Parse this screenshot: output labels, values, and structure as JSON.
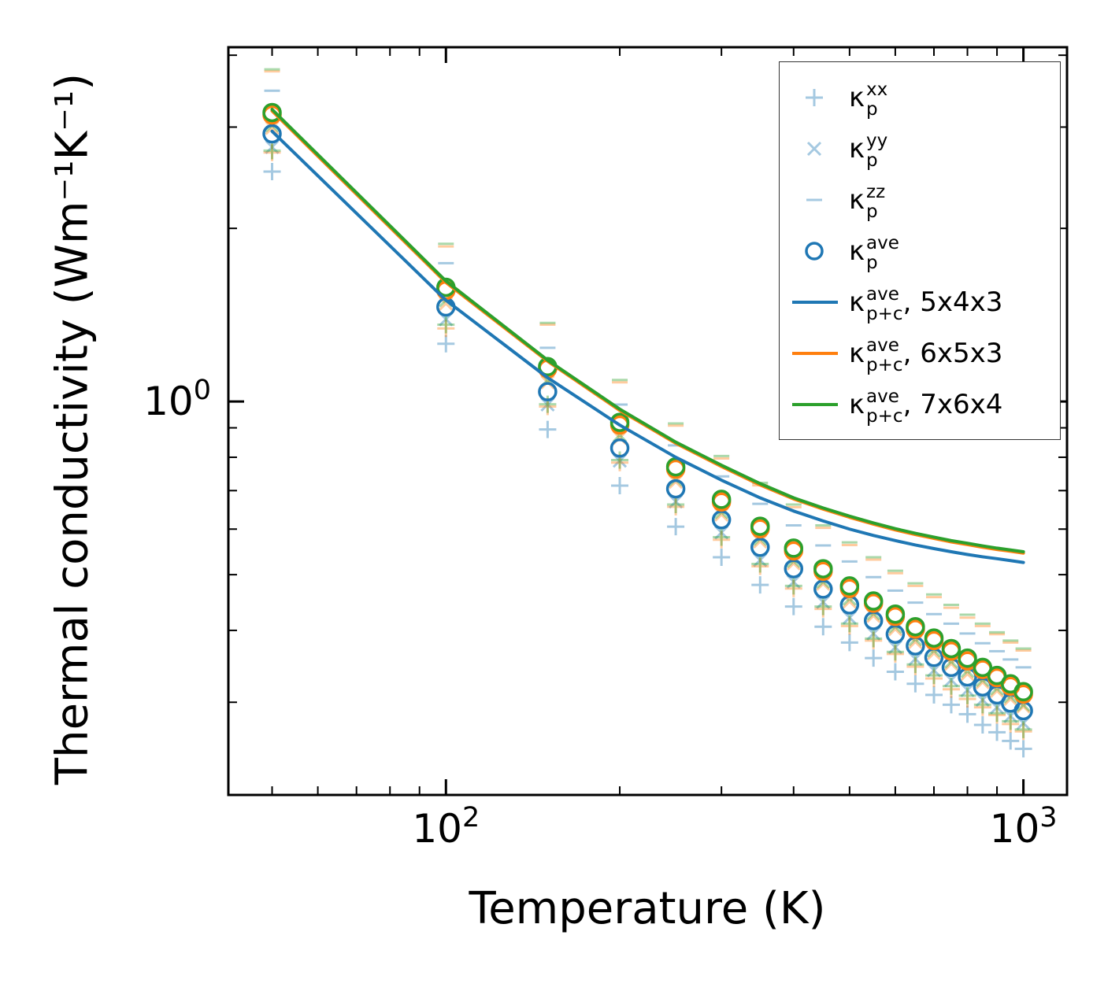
{
  "chart_data": {
    "type": "scatter+line",
    "title": "",
    "xlabel": "Temperature (K)",
    "ylabel": "Thermal conductivity (Wm⁻¹K⁻¹)",
    "xscale": "log",
    "yscale": "log",
    "xlim": [
      42,
      1190
    ],
    "ylim": [
      0.207,
      4.13
    ],
    "grid": false,
    "legend_position": "upper right",
    "axis_color": "#000000",
    "xticks": [
      {
        "v": 100,
        "base": "10",
        "exp": "2"
      },
      {
        "v": 1000,
        "base": "10",
        "exp": "3"
      }
    ],
    "yticks": [
      {
        "v": 1,
        "base": "10",
        "exp": "0"
      }
    ],
    "x": [
      50,
      100,
      150,
      200,
      250,
      300,
      350,
      400,
      450,
      500,
      550,
      600,
      650,
      700,
      750,
      800,
      850,
      900,
      950,
      1000
    ],
    "series": [
      {
        "name": "kappa-p-xx-5x4x3",
        "type": "scatter",
        "marker": "plus",
        "color": "#1f77b4",
        "alpha": 0.4,
        "values": [
          2.51,
          1.26,
          0.894,
          0.714,
          0.606,
          0.536,
          0.48,
          0.44,
          0.406,
          0.381,
          0.358,
          0.339,
          0.323,
          0.309,
          0.297,
          0.286,
          0.274,
          0.266,
          0.257,
          0.249
        ]
      },
      {
        "name": "kappa-p-yy-5x4x3",
        "type": "scatter",
        "marker": "x",
        "color": "#1f77b4",
        "alpha": 0.4,
        "values": [
          2.77,
          1.39,
          0.988,
          0.789,
          0.67,
          0.592,
          0.53,
          0.486,
          0.448,
          0.421,
          0.395,
          0.374,
          0.357,
          0.341,
          0.328,
          0.315,
          0.303,
          0.294,
          0.284,
          0.276
        ]
      },
      {
        "name": "kappa-p-zz-5x4x3",
        "type": "scatter",
        "marker": "dash",
        "color": "#1f77b4",
        "alpha": 0.4,
        "values": [
          3.47,
          1.74,
          1.24,
          0.988,
          0.839,
          0.741,
          0.664,
          0.609,
          0.562,
          0.527,
          0.495,
          0.469,
          0.447,
          0.427,
          0.411,
          0.395,
          0.38,
          0.368,
          0.356,
          0.345
        ]
      },
      {
        "name": "kappa-p-xx-6x5x3",
        "type": "scatter",
        "marker": "plus",
        "color": "#ff7f0e",
        "alpha": 0.4,
        "values": [
          2.71,
          1.34,
          0.98,
          0.783,
          0.656,
          0.575,
          0.517,
          0.473,
          0.436,
          0.407,
          0.384,
          0.364,
          0.346,
          0.33,
          0.316,
          0.304,
          0.294,
          0.285,
          0.275,
          0.267
        ]
      },
      {
        "name": "kappa-p-yy-6x5x3",
        "type": "scatter",
        "marker": "x",
        "color": "#ff7f0e",
        "alpha": 0.4,
        "values": [
          2.99,
          1.48,
          1.08,
          0.865,
          0.725,
          0.636,
          0.571,
          0.523,
          0.482,
          0.449,
          0.424,
          0.402,
          0.382,
          0.365,
          0.35,
          0.336,
          0.325,
          0.314,
          0.304,
          0.295
        ]
      },
      {
        "name": "kappa-p-zz-6x5x3",
        "type": "scatter",
        "marker": "dash",
        "color": "#ff7f0e",
        "alpha": 0.4,
        "values": [
          3.75,
          1.86,
          1.36,
          1.08,
          0.908,
          0.796,
          0.715,
          0.655,
          0.603,
          0.563,
          0.531,
          0.503,
          0.478,
          0.457,
          0.438,
          0.421,
          0.407,
          0.394,
          0.381,
          0.369
        ]
      },
      {
        "name": "kappa-p-xx-7x6x4",
        "type": "scatter",
        "marker": "plus",
        "color": "#2ca02c",
        "alpha": 0.4,
        "values": [
          2.73,
          1.36,
          0.989,
          0.791,
          0.662,
          0.581,
          0.522,
          0.478,
          0.44,
          0.411,
          0.387,
          0.367,
          0.349,
          0.334,
          0.32,
          0.308,
          0.297,
          0.287,
          0.278,
          0.269
        ]
      },
      {
        "name": "kappa-p-yy-7x6x4",
        "type": "scatter",
        "marker": "x",
        "color": "#2ca02c",
        "alpha": 0.4,
        "values": [
          3.02,
          1.5,
          1.09,
          0.874,
          0.732,
          0.642,
          0.577,
          0.528,
          0.486,
          0.454,
          0.428,
          0.406,
          0.386,
          0.369,
          0.353,
          0.34,
          0.328,
          0.317,
          0.307,
          0.297
        ]
      },
      {
        "name": "kappa-p-zz-7x6x4",
        "type": "scatter",
        "marker": "dash",
        "color": "#2ca02c",
        "alpha": 0.4,
        "values": [
          3.78,
          1.88,
          1.37,
          1.09,
          0.916,
          0.804,
          0.722,
          0.662,
          0.609,
          0.569,
          0.536,
          0.508,
          0.483,
          0.462,
          0.443,
          0.426,
          0.411,
          0.397,
          0.384,
          0.372
        ]
      },
      {
        "name": "kappa-p-ave-5x4x3",
        "type": "scatter",
        "marker": "circle",
        "color": "#1f77b4",
        "alpha": 1,
        "values": [
          2.92,
          1.46,
          1.04,
          0.83,
          0.705,
          0.623,
          0.558,
          0.512,
          0.472,
          0.443,
          0.416,
          0.394,
          0.376,
          0.359,
          0.345,
          0.332,
          0.319,
          0.309,
          0.299,
          0.29
        ]
      },
      {
        "name": "kappa-p-ave-6x5x3",
        "type": "scatter",
        "marker": "circle",
        "color": "#ff7f0e",
        "alpha": 1,
        "values": [
          3.15,
          1.56,
          1.14,
          0.91,
          0.763,
          0.669,
          0.601,
          0.55,
          0.507,
          0.473,
          0.446,
          0.423,
          0.402,
          0.384,
          0.368,
          0.354,
          0.342,
          0.331,
          0.32,
          0.31
        ]
      },
      {
        "name": "kappa-p-ave-7x6x4",
        "type": "scatter",
        "marker": "circle",
        "color": "#2ca02c",
        "alpha": 1,
        "values": [
          3.18,
          1.58,
          1.15,
          0.92,
          0.77,
          0.676,
          0.607,
          0.556,
          0.512,
          0.478,
          0.45,
          0.427,
          0.406,
          0.388,
          0.372,
          0.358,
          0.345,
          0.334,
          0.323,
          0.313
        ]
      },
      {
        "name": "kappa-pc-ave-5x4x3",
        "type": "line",
        "color": "#1f77b4",
        "alpha": 1,
        "values": [
          2.95,
          1.5,
          1.1,
          0.91,
          0.8,
          0.73,
          0.68,
          0.645,
          0.62,
          0.6,
          0.585,
          0.573,
          0.563,
          0.555,
          0.548,
          0.542,
          0.537,
          0.533,
          0.529,
          0.525
        ]
      },
      {
        "name": "kappa-pc-ave-6x5x3",
        "type": "line",
        "color": "#ff7f0e",
        "alpha": 1,
        "values": [
          3.2,
          1.61,
          1.175,
          0.965,
          0.846,
          0.771,
          0.716,
          0.677,
          0.65,
          0.629,
          0.612,
          0.598,
          0.587,
          0.578,
          0.57,
          0.564,
          0.558,
          0.553,
          0.549,
          0.545
        ]
      },
      {
        "name": "kappa-pc-ave-7x6x4",
        "type": "line",
        "color": "#2ca02c",
        "alpha": 1,
        "values": [
          3.22,
          1.62,
          1.18,
          0.97,
          0.85,
          0.775,
          0.72,
          0.68,
          0.653,
          0.632,
          0.615,
          0.601,
          0.59,
          0.581,
          0.573,
          0.567,
          0.561,
          0.556,
          0.552,
          0.548
        ]
      }
    ]
  },
  "legend": {
    "items": [
      {
        "name": "kappa-p-xx",
        "marker": "plus",
        "color": "#1f77b4",
        "alpha": 0.4,
        "symbol": "κ",
        "sup": "xx",
        "sub": "p",
        "suffix": ""
      },
      {
        "name": "kappa-p-yy",
        "marker": "x",
        "color": "#1f77b4",
        "alpha": 0.4,
        "symbol": "κ",
        "sup": "yy",
        "sub": "p",
        "suffix": ""
      },
      {
        "name": "kappa-p-zz",
        "marker": "dash",
        "color": "#1f77b4",
        "alpha": 0.4,
        "symbol": "κ",
        "sup": "zz",
        "sub": "p",
        "suffix": ""
      },
      {
        "name": "kappa-p-ave",
        "marker": "circle",
        "color": "#1f77b4",
        "alpha": 1,
        "symbol": "κ",
        "sup": "ave",
        "sub": "p",
        "suffix": ""
      },
      {
        "name": "kappa-pc-ave-5x4x3",
        "marker": "line",
        "color": "#1f77b4",
        "alpha": 1,
        "symbol": "κ",
        "sup": "ave",
        "sub": "p+c",
        "suffix": ", 5x4x3"
      },
      {
        "name": "kappa-pc-ave-6x5x3",
        "marker": "line",
        "color": "#ff7f0e",
        "alpha": 1,
        "symbol": "κ",
        "sup": "ave",
        "sub": "p+c",
        "suffix": ", 6x5x3"
      },
      {
        "name": "kappa-pc-ave-7x6x4",
        "marker": "line",
        "color": "#2ca02c",
        "alpha": 1,
        "symbol": "κ",
        "sup": "ave",
        "sub": "p+c",
        "suffix": ", 7x6x4"
      }
    ]
  }
}
